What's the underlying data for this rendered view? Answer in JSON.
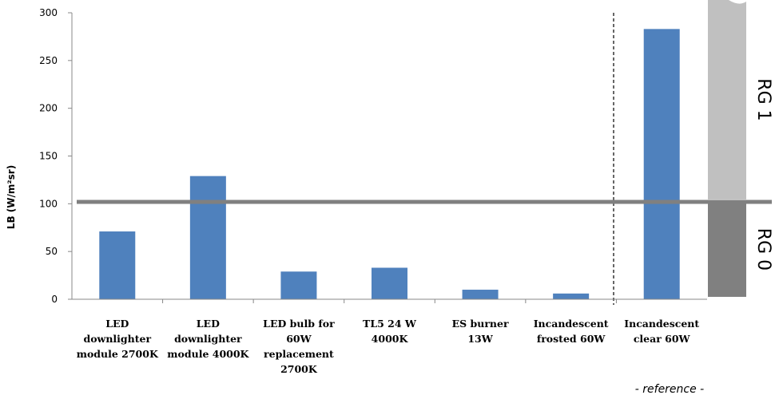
{
  "chart_data": {
    "type": "bar",
    "ylabel": "LB (W/m²sr)",
    "ylim": [
      0,
      300
    ],
    "yticks": [
      0,
      50,
      100,
      150,
      200,
      250,
      300
    ],
    "categories": [
      [
        "LED",
        "downlighter",
        "module 2700K"
      ],
      [
        "LED",
        "downlighter",
        "module 4000K"
      ],
      [
        "LED bulb for",
        "60W",
        "replacement",
        "2700K"
      ],
      [
        "TL5 24 W",
        "4000K"
      ],
      [
        "ES burner",
        "13W"
      ],
      [
        "Incandescent",
        "frosted 60W"
      ],
      [
        "Incandescent",
        "clear 60W"
      ]
    ],
    "values": [
      71,
      129,
      29,
      33,
      10,
      6,
      283
    ],
    "threshold": 102,
    "zones": [
      {
        "label": "RG 1",
        "from": 102,
        "to": 300,
        "color": "#c0c0c0"
      },
      {
        "label": "RG 0",
        "from": 0,
        "to": 102,
        "color": "#808080"
      }
    ],
    "reference_label": "- reference -",
    "grid": false,
    "bar_color": "#4f81bd",
    "threshold_color": "#808080"
  }
}
